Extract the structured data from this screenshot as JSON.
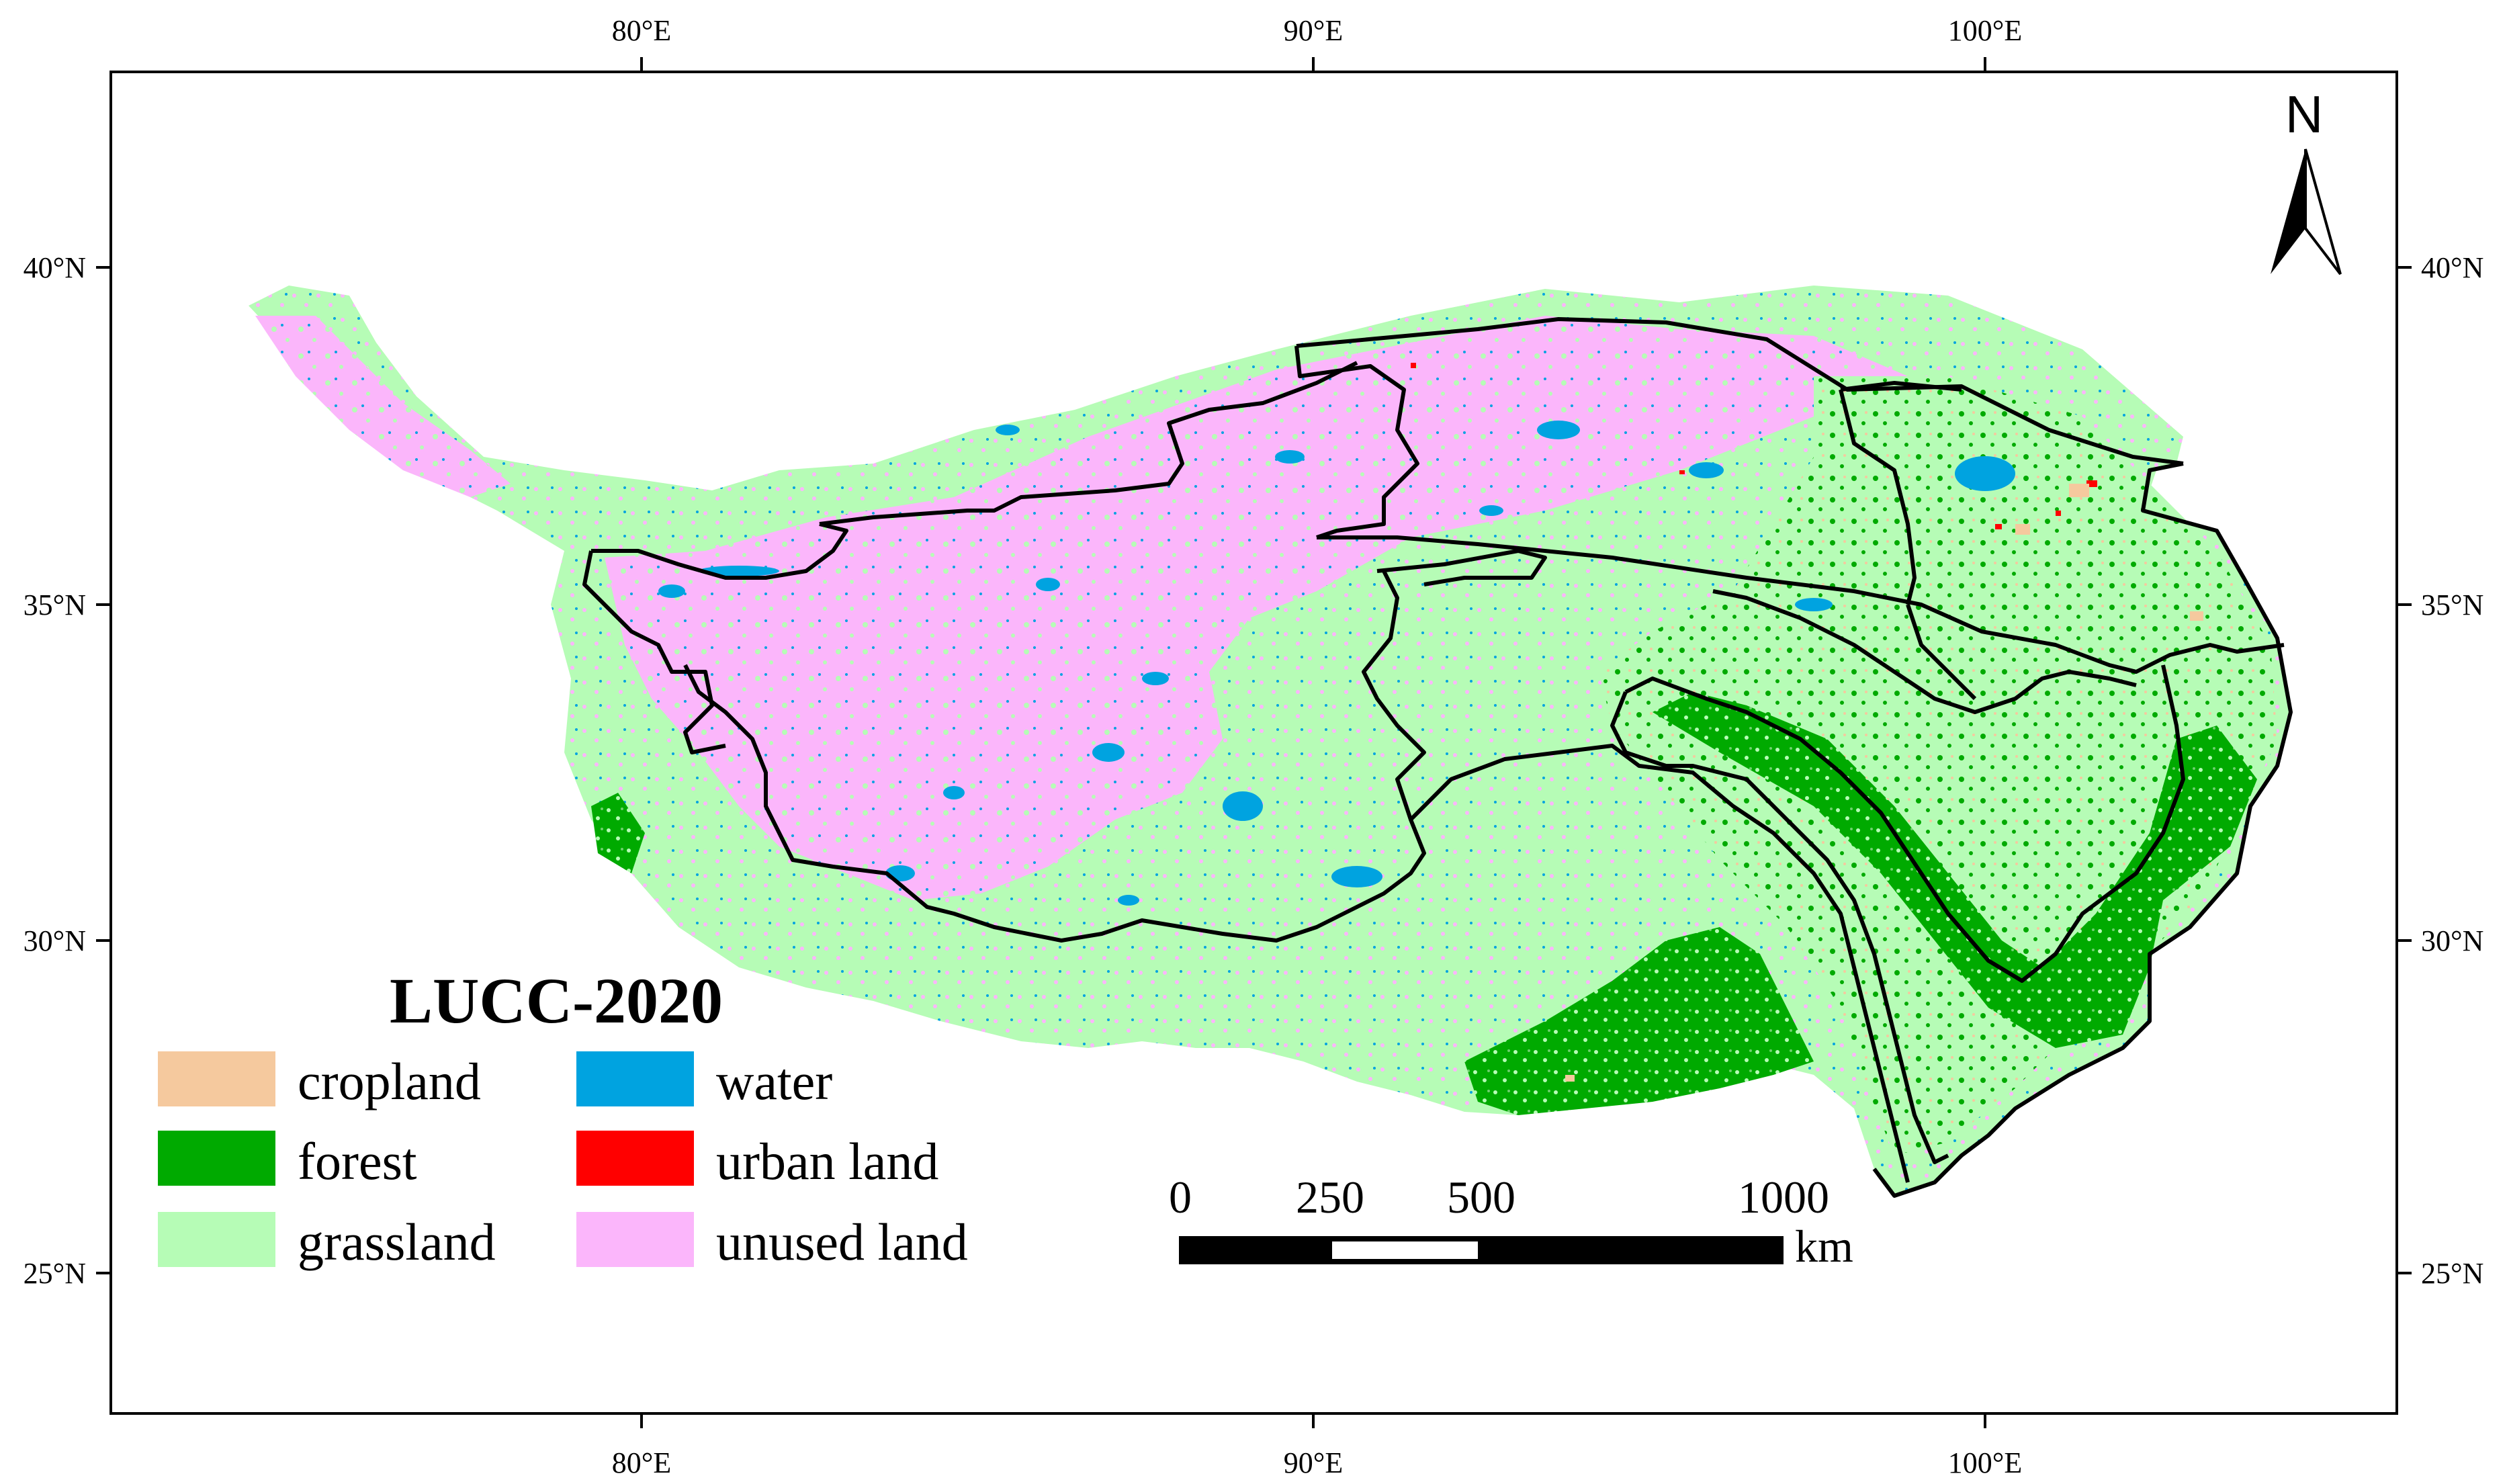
{
  "map": {
    "title": "LUCC-2020",
    "graticule": {
      "top_labels": [
        "80°E",
        "90°E",
        "100°E"
      ],
      "bottom_labels": [
        "80°E",
        "90°E",
        "100°E"
      ],
      "left_labels": [
        "40°N",
        "35°N",
        "30°N",
        "25°N"
      ],
      "right_labels": [
        "40°N",
        "35°N",
        "30°N",
        "25°N"
      ]
    },
    "legend": {
      "items": [
        {
          "label": "cropland",
          "color": "#f5c99e"
        },
        {
          "label": "forest",
          "color": "#00aa00"
        },
        {
          "label": "grassland",
          "color": "#b6fcb6"
        },
        {
          "label": "water",
          "color": "#00a3e0"
        },
        {
          "label": "urban land",
          "color": "#ff0000"
        },
        {
          "label": "unused land",
          "color": "#fbb6fb"
        }
      ]
    },
    "scale_bar": {
      "ticks": [
        "0",
        "250",
        "500",
        "1000"
      ],
      "unit": "km"
    },
    "north_arrow": {
      "label": "N",
      "icon": "north-arrow-icon"
    },
    "colors": {
      "boundary": "#000000",
      "frame": "#000000"
    }
  }
}
